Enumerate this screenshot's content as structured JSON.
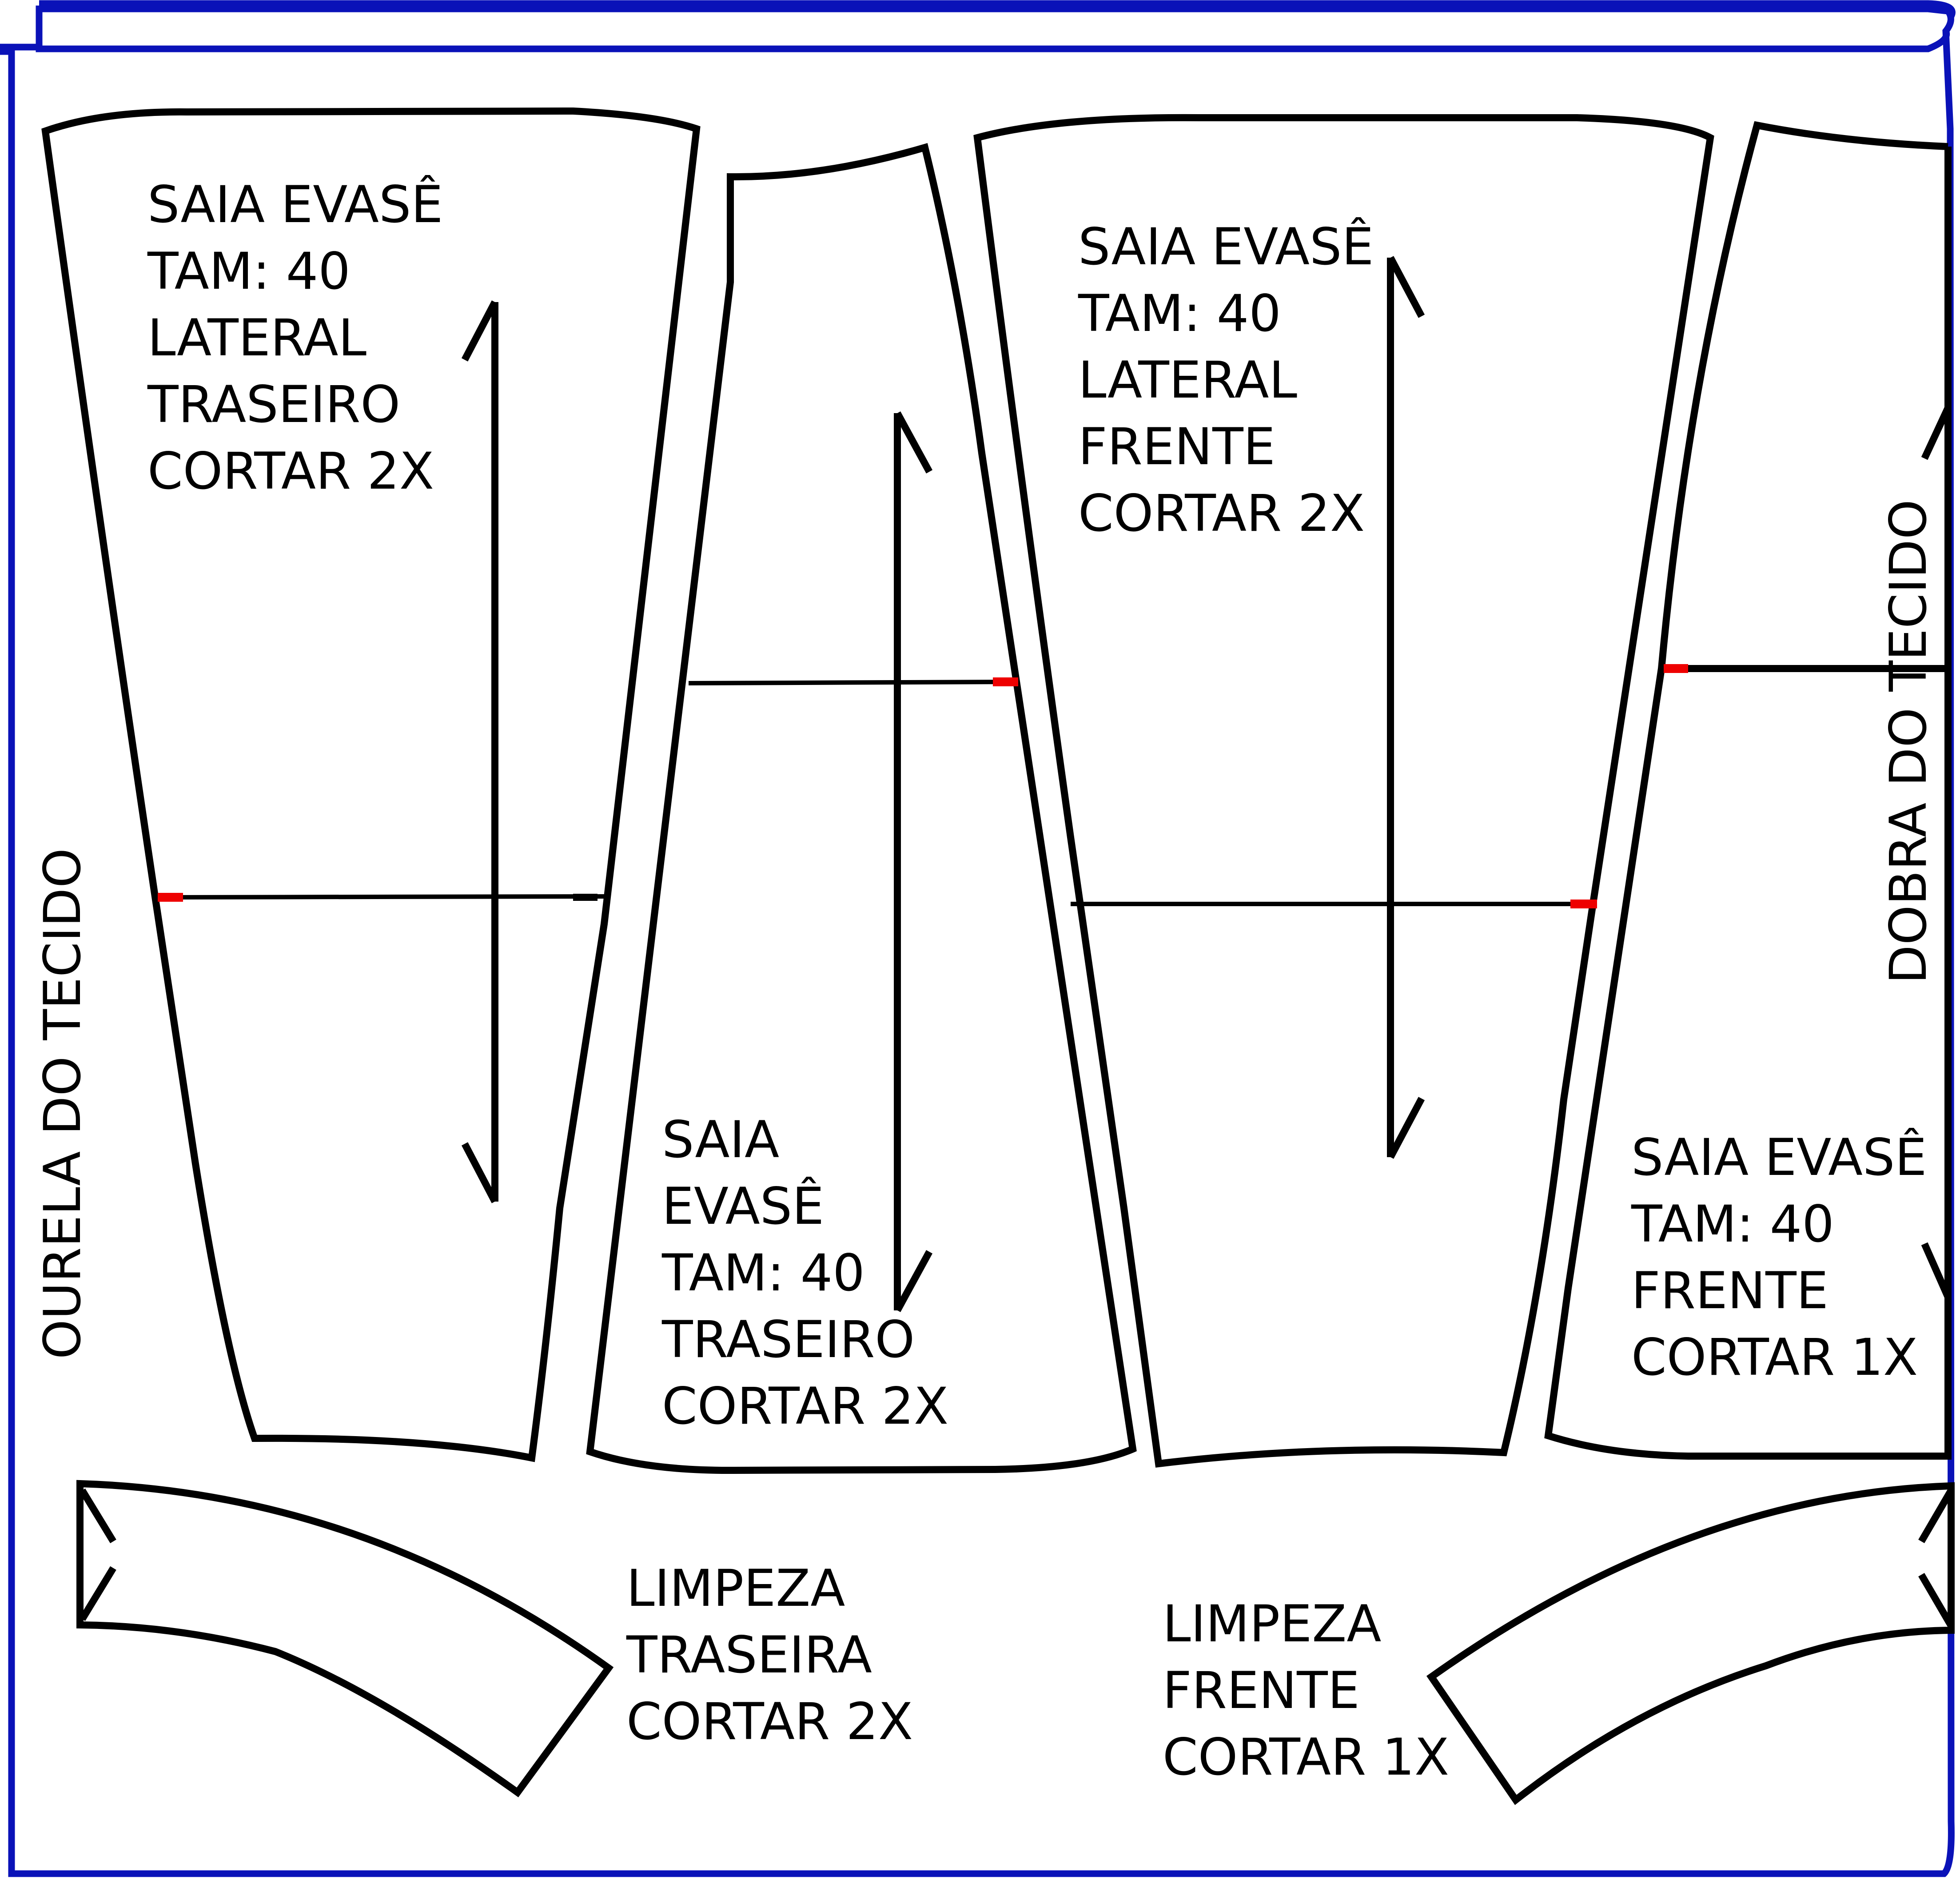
{
  "colors": {
    "fabric_outline": "#0a12b8",
    "pattern_line": "#000000",
    "notch_mark": "#ee0000",
    "background": "#ffffff"
  },
  "fabric": {
    "selvage_label": "OURELA DO TECIDO",
    "fold_label": "DOBRA DO TECIDO"
  },
  "pieces": {
    "lateral_traseiro": [
      "SAIA EVASÊ",
      "TAM: 40",
      "LATERAL",
      "TRASEIRO",
      "CORTAR 2X"
    ],
    "traseiro": [
      "SAIA",
      "EVASÊ",
      "TAM: 40",
      "TRASEIRO",
      "CORTAR 2X"
    ],
    "lateral_frente": [
      "SAIA EVASÊ",
      "TAM: 40",
      "LATERAL",
      "FRENTE",
      "CORTAR 2X"
    ],
    "frente": [
      "SAIA EVASÊ",
      "TAM: 40",
      "FRENTE",
      "CORTAR 1X"
    ],
    "limpeza_traseira": [
      "LIMPEZA",
      "TRASEIRA",
      "CORTAR 2X"
    ],
    "limpeza_frente": [
      "LIMPEZA",
      "FRENTE",
      "CORTAR 1X"
    ]
  }
}
